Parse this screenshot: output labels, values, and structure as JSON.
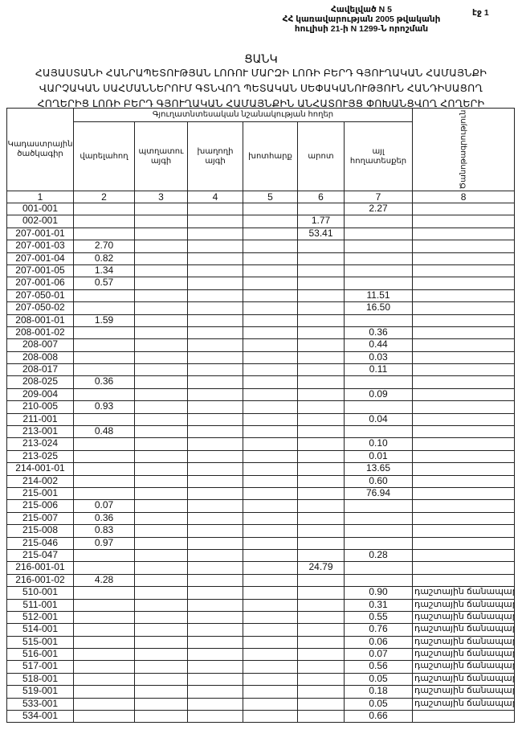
{
  "header": {
    "annex_lines": [
      "Հավելված N 5",
      "ՀՀ կառավարության 2005 թվականի",
      "հուլիսի 21-ի N 1299-Ն որոշման"
    ],
    "page_label": "էջ 1",
    "title": "ՑԱՆԿ",
    "subtitle_lines": [
      "ՀԱՅԱՍՏԱՆԻ ՀԱՆՐԱՊԵՏՈՒԹՅԱՆ ԼՈՌՈՒ ՄԱՐԶԻ ԼՈՌԻ ԲԵՐԴ ԳՅՈՒՂԱԿԱՆ ՀԱՄԱՅՆՔԻ",
      "ՎԱՐՉԱԿԱՆ ՍԱՀՄԱՆՆԵՐՈՒՄ ԳՏՆՎՈՂ ՊԵՏԱԿԱՆ ՍԵՓԱԿԱՆՈՒԹՅՈՒՆ ՀԱՆԴԻՍԱՑՈՂ",
      "ՀՈՂԵՐԻՑ ԼՈՌԻ ԲԵՐԴ ԳՅՈՒՂԱԿԱՆ ՀԱՄԱՅՆՔԻՆ ԱՆՀԱՏՈՒՅՑ ՓՈԽԱՆՑՎՈՂ ՀՈՂԵՐԻ"
    ]
  },
  "table": {
    "group_header": "Գյուղատնտեսական նշանակության հողեր",
    "columns": [
      "Կադաստրային ծածկագիր",
      "վարելահող",
      "պտղատու այգի",
      "խաղողի այգի",
      "խոտհարք",
      "արոտ",
      "այլ հողատեսքեր",
      "Ծանոթագրություն"
    ],
    "column_numbers": [
      "1",
      "2",
      "3",
      "4",
      "5",
      "6",
      "7",
      "8"
    ],
    "rows": [
      [
        "001-001",
        "",
        "",
        "",
        "",
        "",
        "2.27",
        ""
      ],
      [
        "002-001",
        "",
        "",
        "",
        "",
        "1.77",
        "",
        ""
      ],
      [
        "207-001-01",
        "",
        "",
        "",
        "",
        "53.41",
        "",
        ""
      ],
      [
        "207-001-03",
        "2.70",
        "",
        "",
        "",
        "",
        "",
        ""
      ],
      [
        "207-001-04",
        "0.82",
        "",
        "",
        "",
        "",
        "",
        ""
      ],
      [
        "207-001-05",
        "1.34",
        "",
        "",
        "",
        "",
        "",
        ""
      ],
      [
        "207-001-06",
        "0.57",
        "",
        "",
        "",
        "",
        "",
        ""
      ],
      [
        "207-050-01",
        "",
        "",
        "",
        "",
        "",
        "11.51",
        ""
      ],
      [
        "207-050-02",
        "",
        "",
        "",
        "",
        "",
        "16.50",
        ""
      ],
      [
        "208-001-01",
        "1.59",
        "",
        "",
        "",
        "",
        "",
        ""
      ],
      [
        "208-001-02",
        "",
        "",
        "",
        "",
        "",
        "0.36",
        ""
      ],
      [
        "208-007",
        "",
        "",
        "",
        "",
        "",
        "0.44",
        ""
      ],
      [
        "208-008",
        "",
        "",
        "",
        "",
        "",
        "0.03",
        ""
      ],
      [
        "208-017",
        "",
        "",
        "",
        "",
        "",
        "0.11",
        ""
      ],
      [
        "208-025",
        "0.36",
        "",
        "",
        "",
        "",
        "",
        ""
      ],
      [
        "209-004",
        "",
        "",
        "",
        "",
        "",
        "0.09",
        ""
      ],
      [
        "210-005",
        "0.93",
        "",
        "",
        "",
        "",
        "",
        ""
      ],
      [
        "211-001",
        "",
        "",
        "",
        "",
        "",
        "0.04",
        ""
      ],
      [
        "213-001",
        "0.48",
        "",
        "",
        "",
        "",
        "",
        ""
      ],
      [
        "213-024",
        "",
        "",
        "",
        "",
        "",
        "0.10",
        ""
      ],
      [
        "213-025",
        "",
        "",
        "",
        "",
        "",
        "0.01",
        ""
      ],
      [
        "214-001-01",
        "",
        "",
        "",
        "",
        "",
        "13.65",
        ""
      ],
      [
        "214-002",
        "",
        "",
        "",
        "",
        "",
        "0.60",
        ""
      ],
      [
        "215-001",
        "",
        "",
        "",
        "",
        "",
        "76.94",
        ""
      ],
      [
        "215-006",
        "0.07",
        "",
        "",
        "",
        "",
        "",
        ""
      ],
      [
        "215-007",
        "0.36",
        "",
        "",
        "",
        "",
        "",
        ""
      ],
      [
        "215-008",
        "0.83",
        "",
        "",
        "",
        "",
        "",
        ""
      ],
      [
        "215-046",
        "0.97",
        "",
        "",
        "",
        "",
        "",
        ""
      ],
      [
        "215-047",
        "",
        "",
        "",
        "",
        "",
        "0.28",
        ""
      ],
      [
        "216-001-01",
        "",
        "",
        "",
        "",
        "24.79",
        "",
        ""
      ],
      [
        "216-001-02",
        "4.28",
        "",
        "",
        "",
        "",
        "",
        ""
      ],
      [
        "510-001",
        "",
        "",
        "",
        "",
        "",
        "0.90",
        "դաշտային ճանապարհ"
      ],
      [
        "511-001",
        "",
        "",
        "",
        "",
        "",
        "0.31",
        "դաշտային ճանապարհ"
      ],
      [
        "512-001",
        "",
        "",
        "",
        "",
        "",
        "0.55",
        "դաշտային ճանապարհ"
      ],
      [
        "514-001",
        "",
        "",
        "",
        "",
        "",
        "0.76",
        "դաշտային ճանապարհ"
      ],
      [
        "515-001",
        "",
        "",
        "",
        "",
        "",
        "0.06",
        "դաշտային ճանապարհ"
      ],
      [
        "516-001",
        "",
        "",
        "",
        "",
        "",
        "0.07",
        "դաշտային ճանապարհ"
      ],
      [
        "517-001",
        "",
        "",
        "",
        "",
        "",
        "0.56",
        "դաշտային ճանապարհ"
      ],
      [
        "518-001",
        "",
        "",
        "",
        "",
        "",
        "0.05",
        "դաշտային ճանապարհ"
      ],
      [
        "519-001",
        "",
        "",
        "",
        "",
        "",
        "0.18",
        "դաշտային ճանապարհ"
      ],
      [
        "533-001",
        "",
        "",
        "",
        "",
        "",
        "0.05",
        "դաշտային ճանապարհ"
      ],
      [
        "534-001",
        "",
        "",
        "",
        "",
        "",
        "0.66",
        ""
      ]
    ]
  }
}
